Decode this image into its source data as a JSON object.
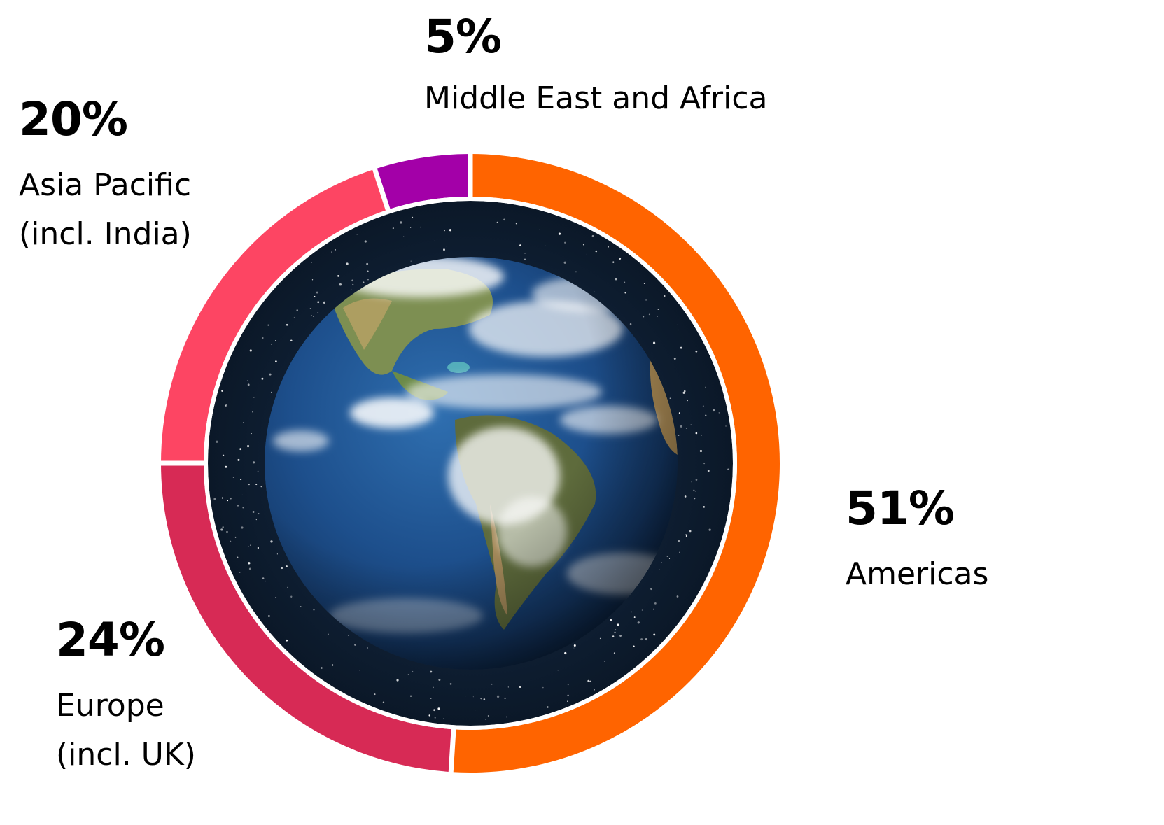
{
  "chart_data": {
    "type": "pie",
    "variant": "donut",
    "title": "",
    "categories": [
      "Americas",
      "Europe (incl. UK)",
      "Asia Pacific (incl. India)",
      "Middle East and Africa"
    ],
    "values": [
      51,
      24,
      20,
      5
    ],
    "unit": "%",
    "colors": [
      "#ff6400",
      "#d72a55",
      "#fd4563",
      "#a300a8"
    ],
    "center_image": "earth-globe",
    "legend": "inline-labels"
  },
  "labels": {
    "americas": {
      "pct": "51%",
      "name": "Americas"
    },
    "europe": {
      "pct": "24%",
      "name": "Europe\n(incl. UK)"
    },
    "apac": {
      "pct": "20%",
      "name": "Asia Pacific\n(incl. India)"
    },
    "mea": {
      "pct": "5%",
      "name": "Middle East and Africa"
    }
  }
}
